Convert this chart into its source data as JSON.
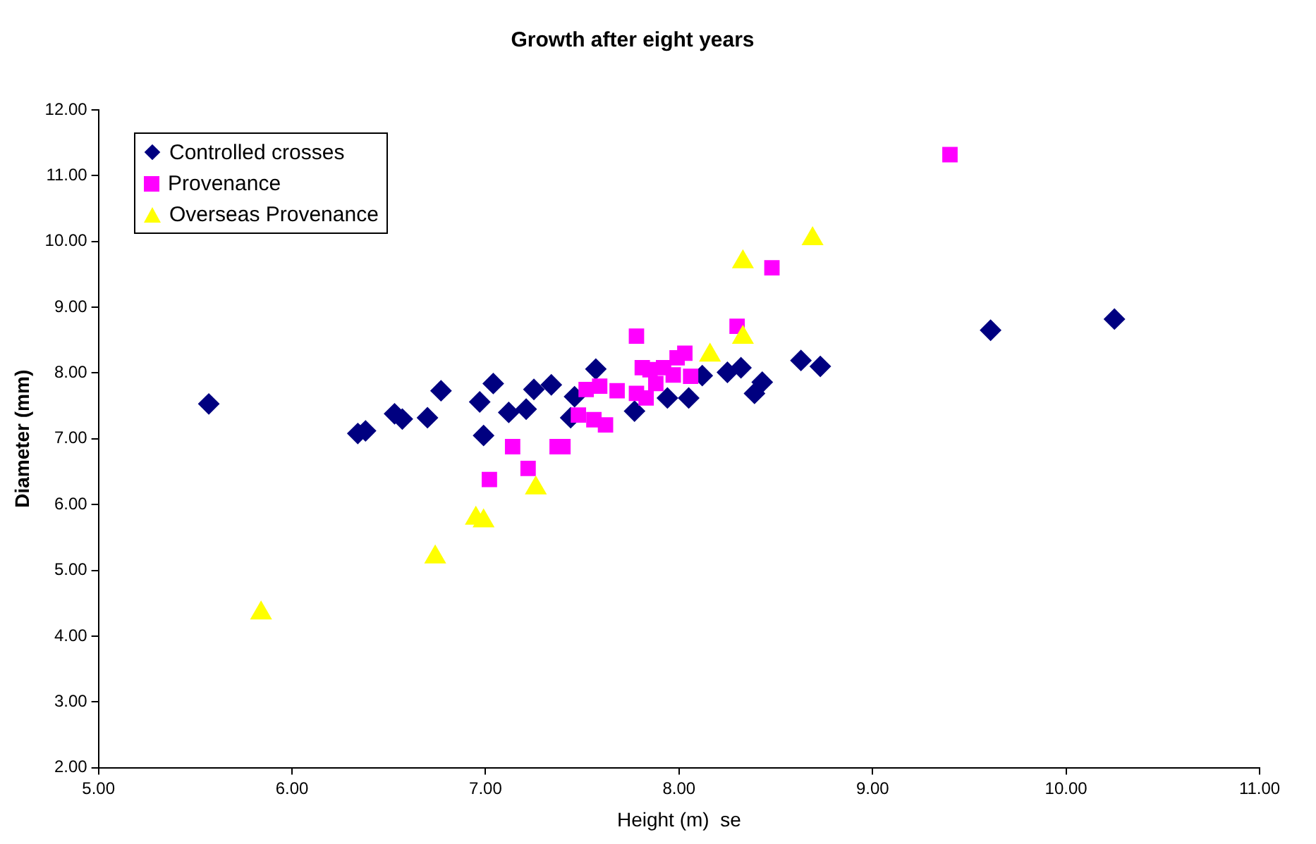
{
  "chart_data": {
    "type": "scatter",
    "title": "Growth after eight years",
    "xlabel": "Height (m)  se",
    "ylabel": "Diameter (mm)",
    "xlim": [
      5,
      11
    ],
    "xticks": [
      {
        "value": 5,
        "label": "5.00"
      },
      {
        "value": 6,
        "label": "6.00"
      },
      {
        "value": 7,
        "label": "7.00"
      },
      {
        "value": 8,
        "label": "8.00"
      },
      {
        "value": 9,
        "label": "9.00"
      },
      {
        "value": 10,
        "label": "10.00"
      },
      {
        "value": 11,
        "label": "11.00"
      }
    ],
    "ylim": [
      2,
      12
    ],
    "yticks": [
      {
        "value": 2,
        "label": "2.00"
      },
      {
        "value": 3,
        "label": "3.00"
      },
      {
        "value": 4,
        "label": "4.00"
      },
      {
        "value": 5,
        "label": "5.00"
      },
      {
        "value": 6,
        "label": "6.00"
      },
      {
        "value": 7,
        "label": "7.00"
      },
      {
        "value": 8,
        "label": "8.00"
      },
      {
        "value": 9,
        "label": "9.00"
      },
      {
        "value": 10,
        "label": "10.00"
      },
      {
        "value": 11,
        "label": "11.00"
      },
      {
        "value": 12,
        "label": "12.00"
      }
    ],
    "grid": false,
    "legend": "top left",
    "series": [
      {
        "name": "Controlled crosses",
        "color": "#000080",
        "marker": "diamond",
        "x": [
          5.57,
          6.34,
          6.38,
          6.53,
          6.57,
          6.7,
          6.77,
          6.97,
          7.04,
          6.99,
          7.12,
          7.21,
          7.25,
          7.34,
          7.46,
          7.44,
          7.57,
          7.77,
          7.94,
          8.05,
          8.12,
          8.25,
          8.32,
          8.43,
          8.39,
          8.63,
          8.73,
          9.61,
          10.25
        ],
        "values": [
          7.53,
          7.08,
          7.12,
          7.38,
          7.3,
          7.32,
          7.73,
          7.56,
          7.84,
          7.05,
          7.4,
          7.45,
          7.75,
          7.82,
          7.64,
          7.32,
          8.06,
          7.42,
          7.62,
          7.62,
          7.96,
          8.01,
          8.08,
          7.86,
          7.69,
          8.19,
          8.1,
          8.65,
          8.82
        ]
      },
      {
        "name": "Provenance",
        "color": "#ff00ff",
        "marker": "square",
        "x": [
          7.78,
          8.3,
          8.48,
          9.4,
          7.02,
          7.14,
          7.22,
          7.37,
          7.4,
          7.52,
          7.59,
          7.48,
          7.56,
          7.62,
          7.68,
          7.78,
          7.81,
          7.85,
          7.88,
          7.83,
          7.99,
          8.03,
          7.97,
          8.06,
          7.92
        ],
        "values": [
          8.56,
          8.71,
          9.6,
          11.32,
          6.38,
          6.88,
          6.55,
          6.88,
          6.88,
          7.75,
          7.8,
          7.36,
          7.29,
          7.21,
          7.73,
          7.69,
          8.08,
          8.05,
          7.84,
          7.62,
          8.23,
          8.3,
          7.97,
          7.95,
          8.08
        ]
      },
      {
        "name": "Overseas Provenance",
        "color": "#ffff00",
        "marker": "triangle",
        "x": [
          5.84,
          6.74,
          6.95,
          6.99,
          7.26,
          8.16,
          8.33,
          8.33,
          8.69
        ],
        "values": [
          4.35,
          5.2,
          5.79,
          5.75,
          6.25,
          8.27,
          8.54,
          9.69,
          10.04
        ]
      }
    ]
  }
}
